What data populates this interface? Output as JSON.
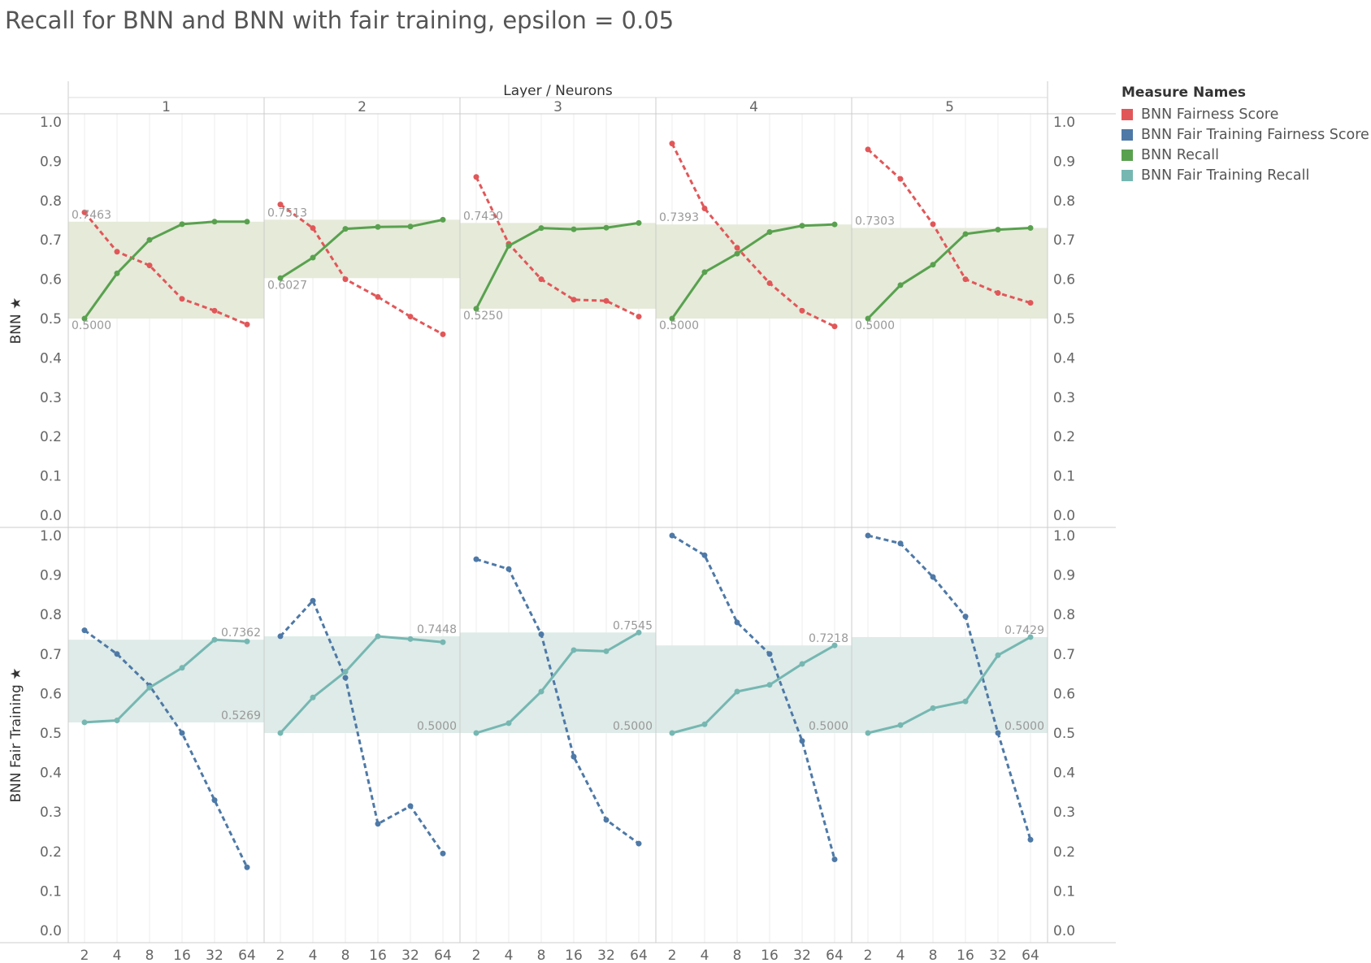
{
  "title": "Recall for BNN and BNN with fair training, epsilon = 0.05",
  "header": "Layer / Neurons",
  "layers": [
    "1",
    "2",
    "3",
    "4",
    "5"
  ],
  "neurons": [
    "2",
    "4",
    "8",
    "16",
    "32",
    "64"
  ],
  "legend": {
    "title": "Measure Names",
    "items": [
      {
        "label": "BNN Fairness Score",
        "color": "#e15759"
      },
      {
        "label": "BNN Fair Training Fairness Score",
        "color": "#4e79a7"
      },
      {
        "label": "BNN Recall",
        "color": "#59a14f"
      },
      {
        "label": "BNN Fair Training Recall",
        "color": "#76b7b2"
      }
    ]
  },
  "chart_data": {
    "type": "line",
    "x_categories": [
      "2",
      "4",
      "8",
      "16",
      "32",
      "64"
    ],
    "ylim": [
      0,
      1
    ],
    "y_ticks": [
      "0.0",
      "0.1",
      "0.2",
      "0.3",
      "0.4",
      "0.5",
      "0.6",
      "0.7",
      "0.8",
      "0.9",
      "1.0"
    ],
    "rows": [
      {
        "label": "BNN",
        "band_color": "#e5ead9",
        "panels": [
          {
            "layer": "1",
            "fairness": [
              0.77,
              0.67,
              0.635,
              0.55,
              0.52,
              0.485
            ],
            "recall": [
              0.5,
              0.615,
              0.7,
              0.74,
              0.7463,
              0.7463
            ],
            "band_min": 0.5,
            "band_max": 0.7463,
            "min_label": "0.5000",
            "max_label": "0.7463"
          },
          {
            "layer": "2",
            "fairness": [
              0.79,
              0.73,
              0.6,
              0.555,
              0.505,
              0.46
            ],
            "recall": [
              0.6027,
              0.655,
              0.728,
              0.733,
              0.734,
              0.7513
            ],
            "band_min": 0.6027,
            "band_max": 0.7513,
            "min_label": "0.6027",
            "max_label": "0.7513"
          },
          {
            "layer": "3",
            "fairness": [
              0.86,
              0.69,
              0.6,
              0.548,
              0.545,
              0.505
            ],
            "recall": [
              0.525,
              0.685,
              0.73,
              0.727,
              0.731,
              0.743
            ],
            "band_min": 0.525,
            "band_max": 0.743,
            "min_label": "0.5250",
            "max_label": "0.7430"
          },
          {
            "layer": "4",
            "fairness": [
              0.945,
              0.78,
              0.68,
              0.59,
              0.52,
              0.48
            ],
            "recall": [
              0.5,
              0.618,
              0.665,
              0.72,
              0.736,
              0.7393
            ],
            "band_min": 0.5,
            "band_max": 0.7393,
            "min_label": "0.5000",
            "max_label": "0.7393"
          },
          {
            "layer": "5",
            "fairness": [
              0.93,
              0.855,
              0.74,
              0.6,
              0.565,
              0.54
            ],
            "recall": [
              0.5,
              0.585,
              0.637,
              0.715,
              0.726,
              0.7303
            ],
            "band_min": 0.5,
            "band_max": 0.7303,
            "min_label": "0.5000",
            "max_label": "0.7303"
          }
        ]
      },
      {
        "label": "BNN Fair Training",
        "band_color": "#deebe8",
        "panels": [
          {
            "layer": "1",
            "fairness": [
              0.76,
              0.7,
              0.62,
              0.5,
              0.33,
              0.16
            ],
            "recall": [
              0.5269,
              0.532,
              0.615,
              0.665,
              0.7362,
              0.732
            ],
            "band_min": 0.5269,
            "band_max": 0.7362,
            "min_label": "0.5269",
            "max_label": "0.7362"
          },
          {
            "layer": "2",
            "fairness": [
              0.745,
              0.835,
              0.64,
              0.27,
              0.315,
              0.195
            ],
            "recall": [
              0.5,
              0.59,
              0.655,
              0.7448,
              0.738,
              0.73
            ],
            "band_min": 0.5,
            "band_max": 0.7448,
            "min_label": "0.5000",
            "max_label": "0.7448"
          },
          {
            "layer": "3",
            "fairness": [
              0.94,
              0.915,
              0.75,
              0.44,
              0.28,
              0.22
            ],
            "recall": [
              0.5,
              0.525,
              0.605,
              0.71,
              0.707,
              0.7545
            ],
            "band_min": 0.5,
            "band_max": 0.7545,
            "min_label": "0.5000",
            "max_label": "0.7545"
          },
          {
            "layer": "4",
            "fairness": [
              1.0,
              0.95,
              0.78,
              0.7,
              0.48,
              0.18
            ],
            "recall": [
              0.5,
              0.522,
              0.605,
              0.622,
              0.675,
              0.7218
            ],
            "band_min": 0.5,
            "band_max": 0.7218,
            "min_label": "0.5000",
            "max_label": "0.7218"
          },
          {
            "layer": "5",
            "fairness": [
              1.0,
              0.98,
              0.895,
              0.795,
              0.5,
              0.23
            ],
            "recall": [
              0.5,
              0.52,
              0.563,
              0.58,
              0.697,
              0.7429
            ],
            "band_min": 0.5,
            "band_max": 0.7429,
            "min_label": "0.5000",
            "max_label": "0.7429"
          }
        ]
      }
    ]
  }
}
